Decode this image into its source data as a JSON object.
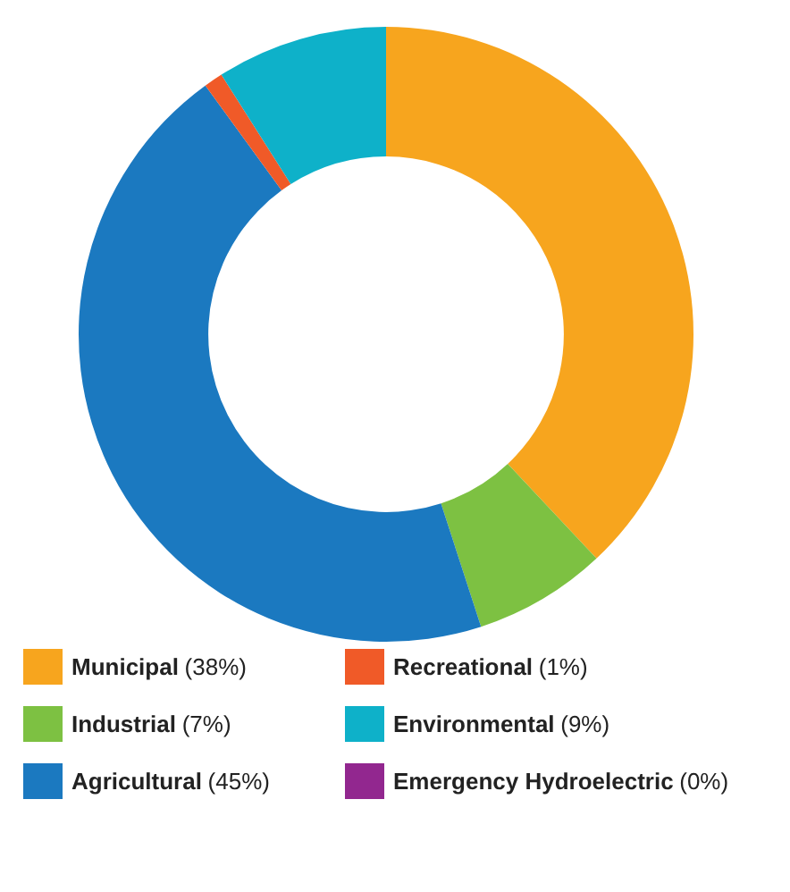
{
  "chart_data": {
    "type": "donut",
    "categories": [
      "Municipal",
      "Industrial",
      "Agricultural",
      "Recreational",
      "Environmental",
      "Emergency Hydroelectric"
    ],
    "values": [
      38,
      7,
      45,
      1,
      9,
      0
    ],
    "colors": [
      "#f7a51e",
      "#7dc142",
      "#1b79c0",
      "#f05a28",
      "#0eb1c9",
      "#92278f"
    ],
    "value_labels": [
      "(38%)",
      "(7%)",
      "(45%)",
      "(1%)",
      "(9%)",
      "(0%)"
    ],
    "legend": "bottom"
  }
}
